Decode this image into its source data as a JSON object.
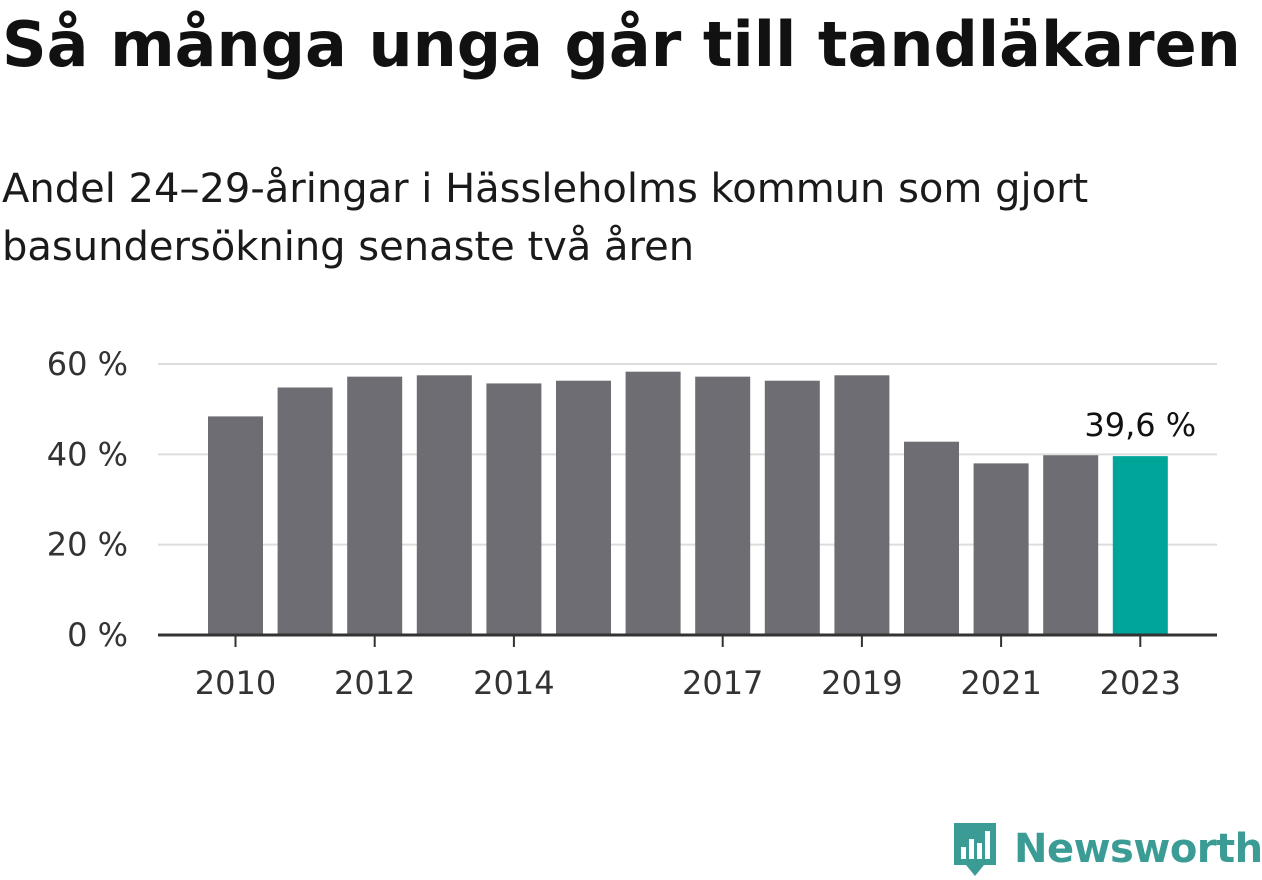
{
  "chart_data": {
    "type": "bar",
    "title": "Så många unga går till tandläkaren",
    "subtitle": "Andel 24–29-åringar i Hässleholms kommun som gjort basundersökning senaste två åren",
    "categories": [
      "2010",
      "2011",
      "2012",
      "2013",
      "2014",
      "2015",
      "2016",
      "2017",
      "2018",
      "2019",
      "2020",
      "2021",
      "2022",
      "2023"
    ],
    "x_tick_labels": [
      "2010",
      "2012",
      "2014",
      "2017",
      "2019",
      "2021",
      "2023"
    ],
    "values": [
      48.4,
      54.8,
      57.2,
      57.5,
      55.7,
      56.3,
      58.3,
      57.2,
      56.3,
      57.5,
      42.8,
      38.0,
      39.8,
      39.6
    ],
    "y_ticks": [
      "0 %",
      "20 %",
      "40 %",
      "60 %"
    ],
    "y_tick_values": [
      0,
      20,
      40,
      60
    ],
    "ylim": [
      0,
      60
    ],
    "grid": true,
    "bar_color": "#6e6d73",
    "highlight_color": "#00a59a",
    "highlight_category": "2023",
    "data_label": "39,6 %"
  },
  "brand": {
    "name": "Newsworthy",
    "color": "#3a9c95",
    "icon": "newsworthy-logo-icon"
  }
}
